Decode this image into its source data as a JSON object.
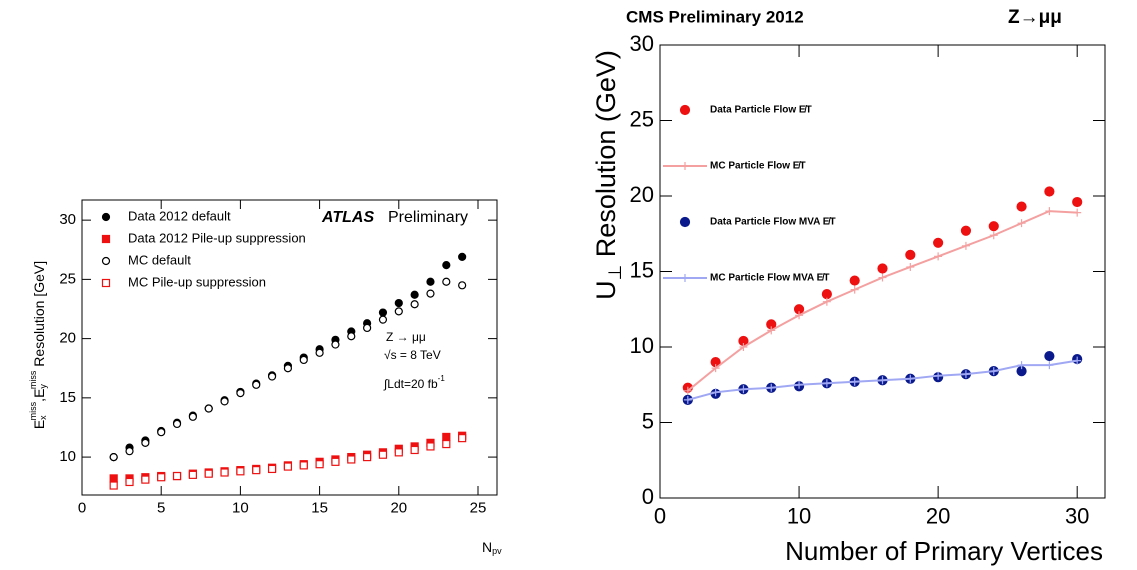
{
  "chart_data": [
    {
      "type": "scatter",
      "xlabel": [
        "N",
        "pv"
      ],
      "ylabel": [
        "E",
        "x",
        "miss",
        ",E",
        "y",
        "miss",
        " Resolution [GeV]"
      ],
      "annotations": {
        "experiment": "ATLAS",
        "status": "Preliminary",
        "process": "Z → μμ",
        "energy": "√s = 8 TeV",
        "lumi": [
          "∫Ldt=20 fb",
          "-1"
        ]
      },
      "x": [
        2,
        3,
        4,
        5,
        6,
        7,
        8,
        9,
        10,
        11,
        12,
        13,
        14,
        15,
        16,
        17,
        18,
        19,
        20,
        21,
        22,
        23,
        24
      ],
      "xlim": [
        0,
        26.2
      ],
      "xticks": [
        0,
        5,
        10,
        15,
        20,
        25
      ],
      "ylim": [
        6.8,
        31.7
      ],
      "yticks": [
        10,
        15,
        20,
        25,
        30
      ],
      "series": [
        {
          "name": "Data 2012 default",
          "color": "#000000",
          "marker": "circle",
          "filled": true,
          "line": false,
          "values": [
            10.0,
            10.8,
            11.4,
            12.2,
            12.9,
            13.5,
            14.1,
            14.8,
            15.5,
            16.2,
            16.9,
            17.7,
            18.4,
            19.1,
            19.9,
            20.6,
            21.3,
            22.2,
            23.0,
            23.7,
            24.8,
            26.2,
            26.9
          ]
        },
        {
          "name": "Data 2012 Pile-up suppression",
          "color": "#ee1111",
          "marker": "square",
          "filled": true,
          "line": false,
          "values": [
            8.2,
            8.2,
            8.3,
            8.4,
            8.4,
            8.6,
            8.7,
            8.8,
            8.9,
            9.0,
            9.1,
            9.3,
            9.4,
            9.6,
            9.8,
            10.0,
            10.2,
            10.4,
            10.7,
            10.9,
            11.2,
            11.7,
            11.8
          ]
        },
        {
          "name": "MC default",
          "color": "#000000",
          "marker": "circle",
          "filled": false,
          "line": false,
          "values": [
            10.0,
            10.5,
            11.2,
            12.1,
            12.8,
            13.4,
            14.1,
            14.7,
            15.4,
            16.1,
            16.8,
            17.5,
            18.2,
            18.8,
            19.5,
            20.2,
            20.9,
            21.6,
            22.3,
            22.9,
            23.8,
            24.8,
            24.5
          ]
        },
        {
          "name": "MC Pile-up suppression",
          "color": "#ee1111",
          "marker": "square",
          "filled": false,
          "line": false,
          "values": [
            7.6,
            7.9,
            8.1,
            8.3,
            8.4,
            8.5,
            8.6,
            8.7,
            8.8,
            8.9,
            9.0,
            9.2,
            9.3,
            9.4,
            9.6,
            9.8,
            10.0,
            10.2,
            10.4,
            10.6,
            10.9,
            11.1,
            11.6
          ]
        }
      ]
    },
    {
      "type": "scatter",
      "title": "CMS Preliminary 2012",
      "process": "Z→μμ",
      "xlabel": [
        "Number of Primary Vertices"
      ],
      "ylabel": [
        "U",
        "⊥",
        " Resolution (GeV)"
      ],
      "x": [
        2,
        4,
        6,
        8,
        10,
        12,
        14,
        16,
        18,
        20,
        22,
        24,
        26,
        28,
        30
      ],
      "xlim": [
        0,
        32
      ],
      "xticks": [
        0,
        10,
        20,
        30
      ],
      "ylim": [
        0,
        30
      ],
      "yticks": [
        0,
        5,
        10,
        15,
        20,
        25,
        30
      ],
      "series": [
        {
          "name": "Data Particle Flow E̸T",
          "color": "#ee1111",
          "marker": "circle",
          "filled": true,
          "line": false,
          "values": [
            7.3,
            9.0,
            10.4,
            11.5,
            12.5,
            13.5,
            14.4,
            15.2,
            16.1,
            16.9,
            17.7,
            18.0,
            19.3,
            20.3,
            19.6
          ]
        },
        {
          "name": "MC Particle Flow E̸T",
          "color": "#f4a0a0",
          "marker": "cross",
          "filled": true,
          "line": true,
          "values": [
            7.1,
            8.6,
            10.0,
            11.1,
            12.1,
            13.0,
            13.8,
            14.6,
            15.3,
            16.0,
            16.7,
            17.4,
            18.2,
            19.0,
            18.9
          ]
        },
        {
          "name": "Data Particle Flow MVA E̸T",
          "color": "#0a1a8c",
          "marker": "circle",
          "filled": true,
          "line": false,
          "values": [
            6.5,
            6.9,
            7.2,
            7.3,
            7.4,
            7.6,
            7.7,
            7.8,
            7.9,
            8.0,
            8.2,
            8.4,
            8.4,
            9.4,
            9.2
          ]
        },
        {
          "name": "MC Particle Flow MVA E̸T",
          "color": "#a0a8f4",
          "marker": "cross",
          "filled": true,
          "line": true,
          "values": [
            6.5,
            7.0,
            7.2,
            7.3,
            7.5,
            7.6,
            7.7,
            7.8,
            7.9,
            8.1,
            8.2,
            8.4,
            8.8,
            8.8,
            9.1
          ]
        }
      ]
    }
  ]
}
